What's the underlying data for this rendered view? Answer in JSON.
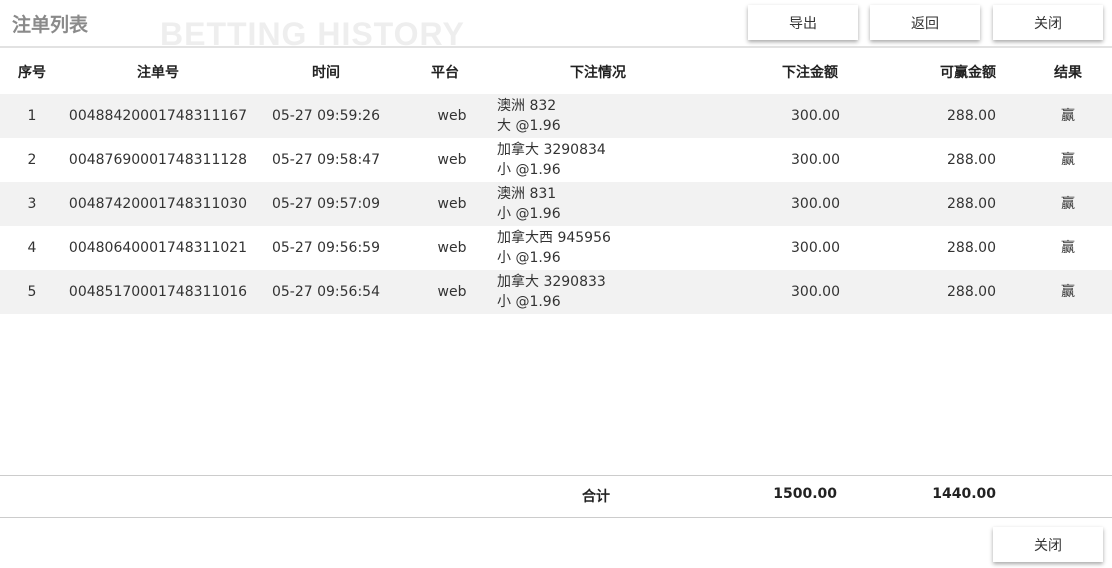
{
  "header": {
    "title": "注单列表",
    "watermark": "BETTING HISTORY",
    "buttons": {
      "export": "导出",
      "back": "返回",
      "close": "关闭"
    }
  },
  "table": {
    "columns": [
      "序号",
      "注单号",
      "时间",
      "平台",
      "下注情况",
      "下注金额",
      "可赢金额",
      "结果"
    ],
    "rows": [
      {
        "index": "1",
        "bet_id": "00488420001748311167",
        "time": "05-27 09:59:26",
        "platform": "web",
        "detail_line1": "澳洲 832",
        "detail_line2": "大 @1.96",
        "stake": "300.00",
        "win": "288.00",
        "result": "赢"
      },
      {
        "index": "2",
        "bet_id": "00487690001748311128",
        "time": "05-27 09:58:47",
        "platform": "web",
        "detail_line1": "加拿大 3290834",
        "detail_line2": "小 @1.96",
        "stake": "300.00",
        "win": "288.00",
        "result": "赢"
      },
      {
        "index": "3",
        "bet_id": "00487420001748311030",
        "time": "05-27 09:57:09",
        "platform": "web",
        "detail_line1": "澳洲 831",
        "detail_line2": "小 @1.96",
        "stake": "300.00",
        "win": "288.00",
        "result": "赢"
      },
      {
        "index": "4",
        "bet_id": "00480640001748311021",
        "time": "05-27 09:56:59",
        "platform": "web",
        "detail_line1": "加拿大西 945956",
        "detail_line2": "小 @1.96",
        "stake": "300.00",
        "win": "288.00",
        "result": "赢"
      },
      {
        "index": "5",
        "bet_id": "00485170001748311016",
        "time": "05-27 09:56:54",
        "platform": "web",
        "detail_line1": "加拿大 3290833",
        "detail_line2": "小 @1.96",
        "stake": "300.00",
        "win": "288.00",
        "result": "赢"
      }
    ]
  },
  "totals": {
    "label": "合计",
    "stake": "1500.00",
    "win": "1440.00"
  },
  "footer": {
    "close": "关闭"
  }
}
